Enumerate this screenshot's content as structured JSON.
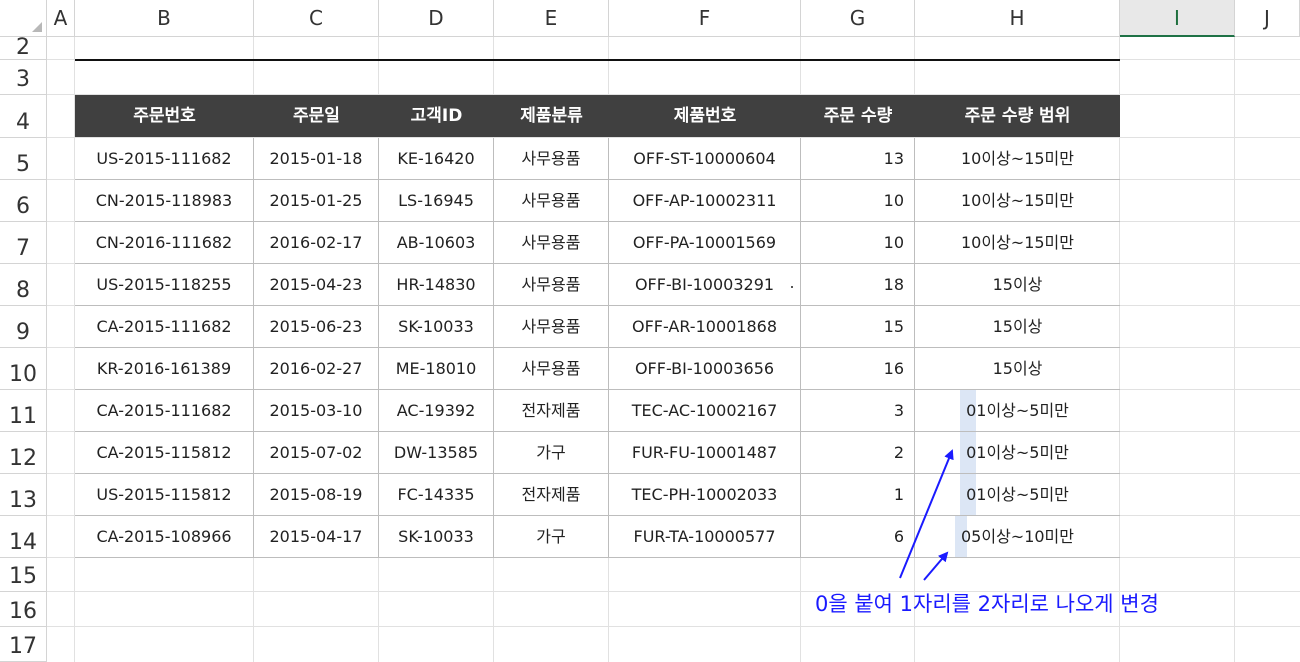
{
  "columns": [
    "A",
    "B",
    "C",
    "D",
    "E",
    "F",
    "G",
    "H",
    "I",
    "J"
  ],
  "rows": [
    "2",
    "3",
    "4",
    "5",
    "6",
    "7",
    "8",
    "9",
    "10",
    "11",
    "12",
    "13",
    "14",
    "15",
    "16",
    "17"
  ],
  "table": {
    "headers": [
      "주문번호",
      "주문일",
      "고객ID",
      "제품분류",
      "제품번호",
      "주문 수량",
      "주문 수량 범위"
    ],
    "rows": [
      [
        "US-2015-111682",
        "2015-01-18",
        "KE-16420",
        "사무용품",
        "OFF-ST-10000604",
        "13",
        "10이상~15미만"
      ],
      [
        "CN-2015-118983",
        "2015-01-25",
        "LS-16945",
        "사무용품",
        "OFF-AP-10002311",
        "10",
        "10이상~15미만"
      ],
      [
        "CN-2016-111682",
        "2016-02-17",
        "AB-10603",
        "사무용품",
        "OFF-PA-10001569",
        "10",
        "10이상~15미만"
      ],
      [
        "US-2015-118255",
        "2015-04-23",
        "HR-14830",
        "사무용품",
        "OFF-BI-10003291",
        "18",
        "15이상"
      ],
      [
        "CA-2015-111682",
        "2015-06-23",
        "SK-10033",
        "사무용품",
        "OFF-AR-10001868",
        "15",
        "15이상"
      ],
      [
        "KR-2016-161389",
        "2016-02-27",
        "ME-18010",
        "사무용품",
        "OFF-BI-10003656",
        "16",
        "15이상"
      ],
      [
        "CA-2015-111682",
        "2015-03-10",
        "AC-19392",
        "전자제품",
        "TEC-AC-10002167",
        "3",
        "01이상~5미만"
      ],
      [
        "CA-2015-115812",
        "2015-07-02",
        "DW-13585",
        "가구",
        "FUR-FU-10001487",
        "2",
        "01이상~5미만"
      ],
      [
        "US-2015-115812",
        "2015-08-19",
        "FC-14335",
        "전자제품",
        "TEC-PH-10002033",
        "1",
        "01이상~5미만"
      ],
      [
        "CA-2015-108966",
        "2015-04-17",
        "SK-10033",
        "가구",
        "FUR-TA-10000577",
        "6",
        "05이상~10미만"
      ]
    ]
  },
  "annotation": {
    "text": "0을 붙여 1자리를 2자리로 나오게 변경",
    "color": "#1a1aff"
  },
  "colors": {
    "header_bg": "#404040",
    "highlight": "#dce6f5",
    "selected_col": "#1e7145"
  }
}
